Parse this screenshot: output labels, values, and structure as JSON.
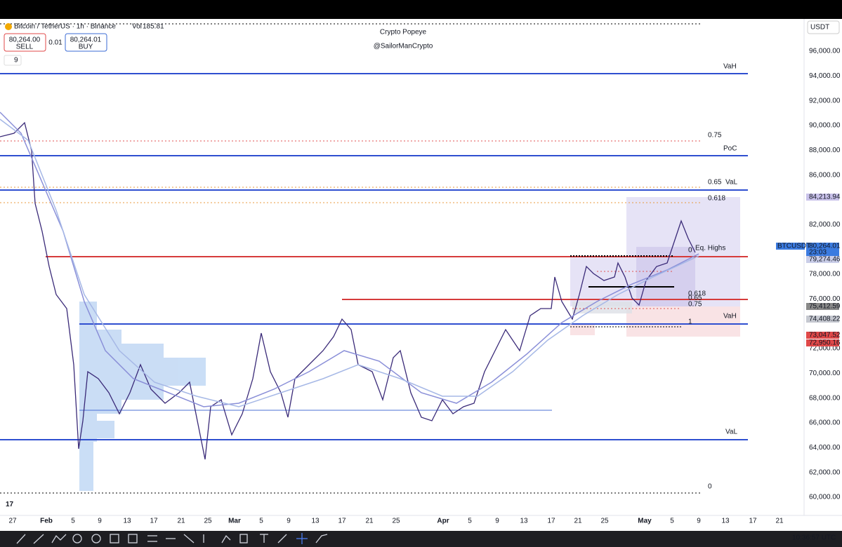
{
  "header": {
    "symbol": "Bitcoin / TetherUS · 1h · Binance",
    "volume_label": "Vol",
    "volume": "185.81",
    "sell_price": "80,264.00",
    "sell": "SELL",
    "spread": "0.01",
    "buy_price": "80,264.01",
    "buy": "BUY",
    "indicators": "9",
    "currency": "USDT"
  },
  "watermark": {
    "title": "Crypto Popeye",
    "handle": "@SailorManCrypto"
  },
  "price_axis": [
    "96,000.00",
    "94,000.00",
    "92,000.00",
    "90,000.00",
    "88,000.00",
    "86,000.00",
    "82,000.00",
    "78,000.00",
    "76,000.00",
    "72,000.00",
    "70,000.00",
    "68,000.00",
    "66,000.00",
    "64,000.00",
    "62,000.00",
    "60,000.00"
  ],
  "date_axis": [
    "27",
    "Feb",
    "5",
    "9",
    "13",
    "17",
    "21",
    "25",
    "Mar",
    "5",
    "9",
    "13",
    "17",
    "21",
    "25",
    "Apr",
    "5",
    "9",
    "13",
    "17",
    "21",
    "25",
    "May",
    "5",
    "9",
    "13",
    "17",
    "21"
  ],
  "levels": [
    "VaH",
    "PoC",
    "VaL",
    "Eq. Highs",
    "VaH",
    "VaL"
  ],
  "fib_labels": [
    "0.75",
    "0.65",
    "0.618",
    "0",
    "0.618",
    "0.65",
    "0.75",
    "1",
    "0"
  ],
  "price_tags": {
    "target": "84,213.94",
    "symbol": "BTCUSDT",
    "last": "80,264.01",
    "countdown": "23:03",
    "ma": "79,274.46",
    "gray": "75,412.59",
    "gray2": "74,408.22",
    "red1": "73,047.52",
    "red2": "72,950.16"
  },
  "footer": {
    "time": "10:36:57 UTC"
  }
}
